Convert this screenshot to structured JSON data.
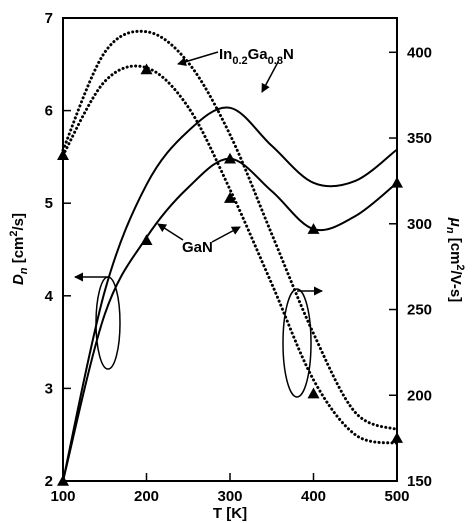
{
  "chart_data": {
    "type": "line",
    "x": [
      100,
      150,
      200,
      250,
      300,
      350,
      400,
      450,
      500
    ],
    "xlim": [
      100,
      500
    ],
    "xticks": [
      100,
      200,
      300,
      400,
      500
    ],
    "xlabel": "T [K]",
    "y_left": {
      "label_main": "D",
      "label_sub": "n",
      "label_unit_pre": " [cm",
      "label_unit_sup": "2",
      "label_unit_post": "/s]",
      "lim": [
        2,
        7
      ],
      "ticks": [
        2,
        3,
        4,
        5,
        6,
        7
      ]
    },
    "y_right": {
      "label_main": "μ",
      "label_sub": "n",
      "label_unit_pre": " [cm",
      "label_unit_sup": "2",
      "label_unit_post": "/V-s]",
      "lim": [
        150,
        420
      ],
      "ticks": [
        150,
        200,
        250,
        300,
        350,
        400
      ]
    },
    "series": [
      {
        "axis": "left",
        "style": "solid",
        "values": [
          2.0,
          4.05,
          5.2,
          5.78,
          6.03,
          5.62,
          5.22,
          5.24,
          5.58
        ]
      },
      {
        "axis": "left",
        "style": "solid",
        "values": [
          2.0,
          3.8,
          4.63,
          5.17,
          5.48,
          5.13,
          4.72,
          4.86,
          5.22
        ]
      },
      {
        "axis": "right",
        "style": "dotted",
        "values": [
          343,
          400,
          412,
          394,
          352,
          294,
          236,
          190,
          180
        ]
      },
      {
        "axis": "right",
        "style": "dotted",
        "values": [
          340,
          383,
          391,
          368,
          320,
          265,
          209,
          177,
          172
        ]
      }
    ],
    "markers": {
      "symbol": "triangle",
      "left": [
        {
          "x": 100,
          "y": 2.0
        },
        {
          "x": 200,
          "y": 4.6
        },
        {
          "x": 300,
          "y": 5.48
        },
        {
          "x": 400,
          "y": 4.72
        },
        {
          "x": 500,
          "y": 5.22
        }
      ],
      "right": [
        {
          "x": 100,
          "y": 340
        },
        {
          "x": 200,
          "y": 390
        },
        {
          "x": 300,
          "y": 315
        },
        {
          "x": 400,
          "y": 201
        },
        {
          "x": 500,
          "y": 175
        }
      ]
    },
    "annotations": {
      "ingan": {
        "pre": "In",
        "sub1": "0.2",
        "mid": "Ga",
        "sub2": "0.8",
        "post": "N"
      },
      "gan": "GaN"
    }
  }
}
